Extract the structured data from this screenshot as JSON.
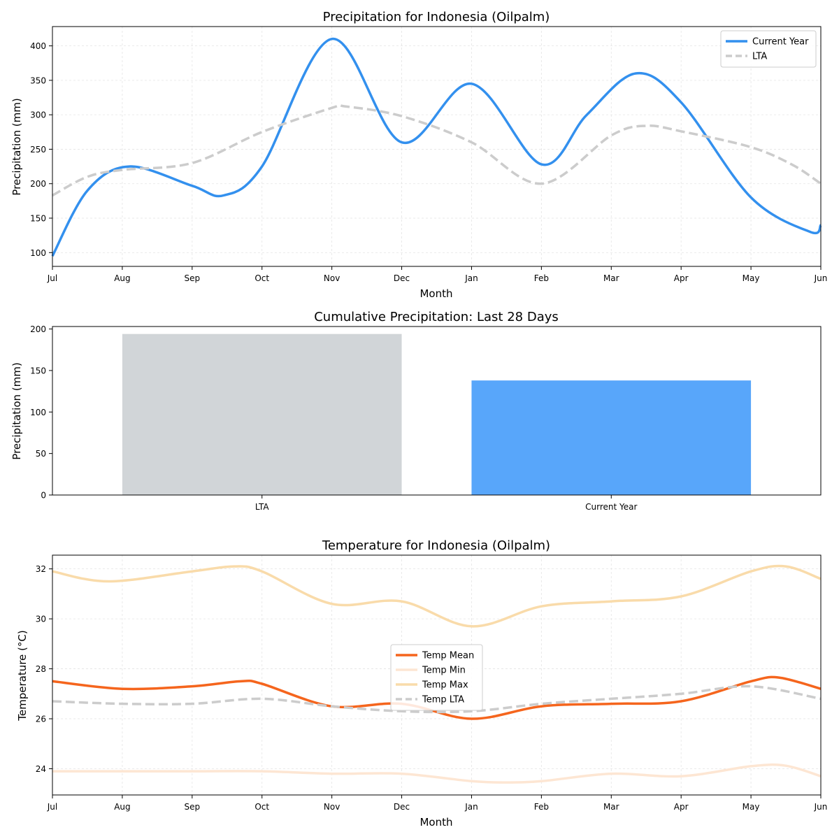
{
  "chart_data": [
    {
      "type": "line",
      "title": "Precipitation for Indonesia (Oilpalm)",
      "xlabel": "Month",
      "ylabel": "Precipitation (mm)",
      "x_ticks": [
        "Jul",
        "Aug",
        "Sep",
        "Oct",
        "Nov",
        "Dec",
        "Jan",
        "Feb",
        "Mar",
        "Apr",
        "May",
        "Jun"
      ],
      "y_ticks": [
        100,
        150,
        200,
        250,
        300,
        350,
        400
      ],
      "xlim": [
        0,
        11
      ],
      "ylim": [
        80,
        428
      ],
      "grid": true,
      "legend_position": "top-right",
      "series": [
        {
          "name": "Current Year",
          "color": "#3390ee",
          "style": "solid",
          "points": [
            [
              0,
              95
            ],
            [
              0.5,
              190
            ],
            [
              1.1,
              225
            ],
            [
              2,
              197
            ],
            [
              2.45,
              183
            ],
            [
              3,
              225
            ],
            [
              4,
              410
            ],
            [
              5,
              260
            ],
            [
              6,
              345
            ],
            [
              7,
              228
            ],
            [
              7.65,
              300
            ],
            [
              8.35,
              360
            ],
            [
              9,
              318
            ],
            [
              10,
              180
            ],
            [
              10.85,
              130
            ],
            [
              11,
              140
            ]
          ]
        },
        {
          "name": "LTA",
          "color": "#cccccc",
          "style": "dashed",
          "points": [
            [
              0,
              183
            ],
            [
              0.5,
              210
            ],
            [
              1,
              220
            ],
            [
              2,
              230
            ],
            [
              3,
              275
            ],
            [
              4,
              310
            ],
            [
              4.2,
              312
            ],
            [
              5,
              298
            ],
            [
              6,
              260
            ],
            [
              7,
              200
            ],
            [
              8,
              270
            ],
            [
              8.5,
              284
            ],
            [
              9,
              276
            ],
            [
              10,
              253
            ],
            [
              10.6,
              227
            ],
            [
              11,
              200
            ]
          ]
        }
      ]
    },
    {
      "type": "bar",
      "title": "Cumulative Precipitation: Last 28 Days",
      "ylabel": "Precipitation (mm)",
      "categories": [
        "LTA",
        "Current Year"
      ],
      "values": [
        194,
        138
      ],
      "colors": [
        "#d1d5d8",
        "#58a6fa"
      ],
      "y_ticks": [
        0,
        50,
        100,
        150,
        200
      ],
      "ylim": [
        0,
        203
      ]
    },
    {
      "type": "line",
      "title": "Temperature for Indonesia (Oilpalm)",
      "xlabel": "Month",
      "ylabel": "Temperature (°C)",
      "x_ticks": [
        "Jul",
        "Aug",
        "Sep",
        "Oct",
        "Nov",
        "Dec",
        "Jan",
        "Feb",
        "Mar",
        "Apr",
        "May",
        "Jun"
      ],
      "y_ticks": [
        24,
        26,
        28,
        30,
        32
      ],
      "xlim": [
        0,
        11
      ],
      "ylim": [
        22.95,
        32.55
      ],
      "grid": true,
      "legend_position": "center-left",
      "series": [
        {
          "name": "Temp Mean",
          "color": "#f5651d",
          "style": "solid",
          "points": [
            [
              0,
              27.5
            ],
            [
              1,
              27.2
            ],
            [
              2,
              27.3
            ],
            [
              2.7,
              27.5
            ],
            [
              3,
              27.4
            ],
            [
              4,
              26.5
            ],
            [
              5,
              26.6
            ],
            [
              6,
              26.0
            ],
            [
              7,
              26.5
            ],
            [
              8,
              26.6
            ],
            [
              9,
              26.7
            ],
            [
              10,
              27.5
            ],
            [
              10.4,
              27.65
            ],
            [
              11,
              27.2
            ]
          ]
        },
        {
          "name": "Temp Min",
          "color": "#fde6d3",
          "style": "solid",
          "points": [
            [
              0,
              23.9
            ],
            [
              1,
              23.9
            ],
            [
              2,
              23.9
            ],
            [
              3,
              23.9
            ],
            [
              4,
              23.8
            ],
            [
              5,
              23.8
            ],
            [
              6,
              23.5
            ],
            [
              6.5,
              23.45
            ],
            [
              7,
              23.5
            ],
            [
              8,
              23.8
            ],
            [
              9,
              23.7
            ],
            [
              10,
              24.1
            ],
            [
              10.5,
              24.12
            ],
            [
              11,
              23.7
            ]
          ]
        },
        {
          "name": "Temp Max",
          "color": "#f9dbaa",
          "style": "solid",
          "points": [
            [
              0,
              31.9
            ],
            [
              0.8,
              31.5
            ],
            [
              2,
              31.9
            ],
            [
              2.6,
              32.1
            ],
            [
              3,
              31.9
            ],
            [
              4,
              30.6
            ],
            [
              5,
              30.7
            ],
            [
              6,
              29.7
            ],
            [
              7,
              30.5
            ],
            [
              8,
              30.7
            ],
            [
              9,
              30.9
            ],
            [
              10,
              31.9
            ],
            [
              10.5,
              32.1
            ],
            [
              11,
              31.6
            ]
          ]
        },
        {
          "name": "Temp LTA",
          "color": "#cccccc",
          "style": "dashed",
          "points": [
            [
              0,
              26.7
            ],
            [
              1,
              26.6
            ],
            [
              2,
              26.6
            ],
            [
              3,
              26.8
            ],
            [
              4,
              26.5
            ],
            [
              5,
              26.3
            ],
            [
              6,
              26.3
            ],
            [
              7,
              26.6
            ],
            [
              8,
              26.8
            ],
            [
              9,
              27.0
            ],
            [
              10,
              27.3
            ],
            [
              11,
              26.8
            ]
          ]
        }
      ]
    }
  ]
}
